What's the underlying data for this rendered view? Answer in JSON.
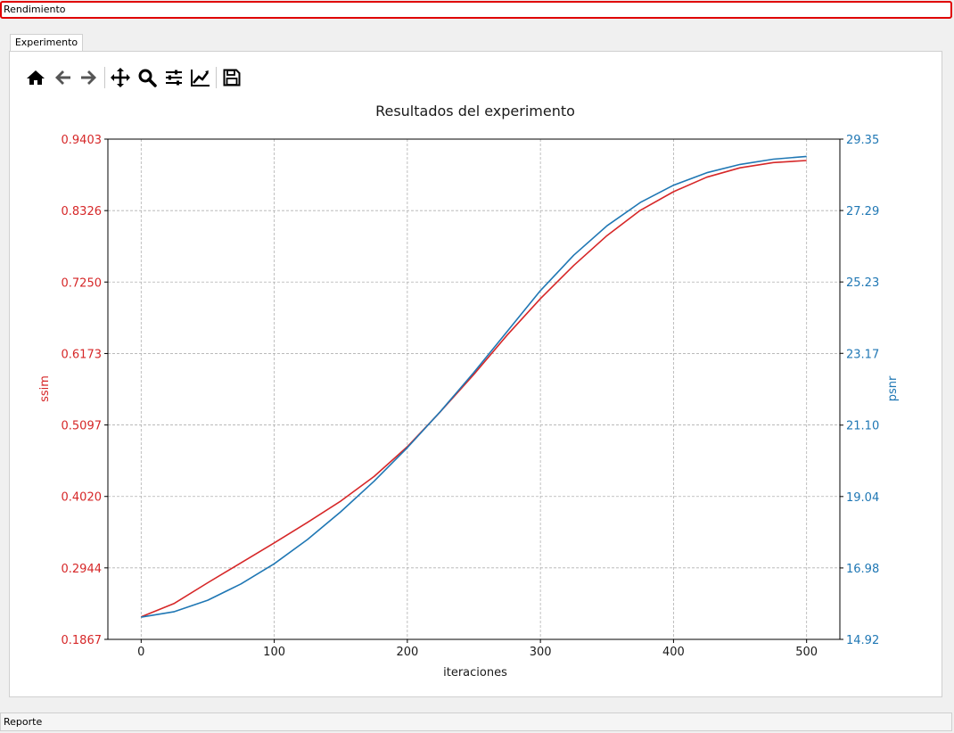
{
  "window": {
    "section_title": "Rendimiento",
    "footer_label": "Reporte"
  },
  "tabs": [
    {
      "label": "Experimento",
      "active": true
    }
  ],
  "toolbar": {
    "icons": [
      "home-icon",
      "back-arrow-icon",
      "forward-arrow-icon",
      "pan-icon",
      "zoom-icon",
      "configure-subplots-icon",
      "edit-axis-icon",
      "save-icon"
    ]
  },
  "chart_data": {
    "type": "line",
    "title": "Resultados del experimento",
    "xlabel": "iteraciones",
    "ylabel_left": "ssim",
    "ylabel_right": "psnr",
    "xlim": [
      -25,
      525
    ],
    "xticks": [
      0,
      100,
      200,
      300,
      400,
      500
    ],
    "ylim_left": [
      0.1867,
      0.9403
    ],
    "yticks_left": [
      "0.1867",
      "0.2944",
      "0.4020",
      "0.5097",
      "0.6173",
      "0.7250",
      "0.8326",
      "0.9403"
    ],
    "ylim_right": [
      14.92,
      29.35
    ],
    "yticks_right": [
      "14.92",
      "16.98",
      "19.04",
      "21.10",
      "23.17",
      "25.23",
      "27.29",
      "29.35"
    ],
    "grid": true,
    "colors": {
      "ssim": "#d62728",
      "psnr": "#1f77b4"
    },
    "series": [
      {
        "axis": "left",
        "x": [
          0,
          25,
          50,
          75,
          100,
          125,
          150,
          175,
          200,
          225,
          250,
          275,
          300,
          325,
          350,
          375,
          400,
          425,
          450,
          475,
          500
        ],
        "values": [
          0.2205,
          0.241,
          0.272,
          0.302,
          0.332,
          0.363,
          0.395,
          0.432,
          0.477,
          0.53,
          0.586,
          0.645,
          0.7,
          0.75,
          0.795,
          0.833,
          0.861,
          0.883,
          0.897,
          0.905,
          0.908
        ]
      },
      {
        "axis": "right",
        "x": [
          0,
          25,
          50,
          75,
          100,
          125,
          150,
          175,
          200,
          225,
          250,
          275,
          300,
          325,
          350,
          375,
          400,
          425,
          450,
          475,
          500
        ],
        "values": [
          15.56,
          15.72,
          16.05,
          16.52,
          17.1,
          17.8,
          18.6,
          19.48,
          20.45,
          21.5,
          22.62,
          23.8,
          24.98,
          26.0,
          26.85,
          27.52,
          28.02,
          28.38,
          28.62,
          28.77,
          28.85
        ]
      }
    ]
  }
}
